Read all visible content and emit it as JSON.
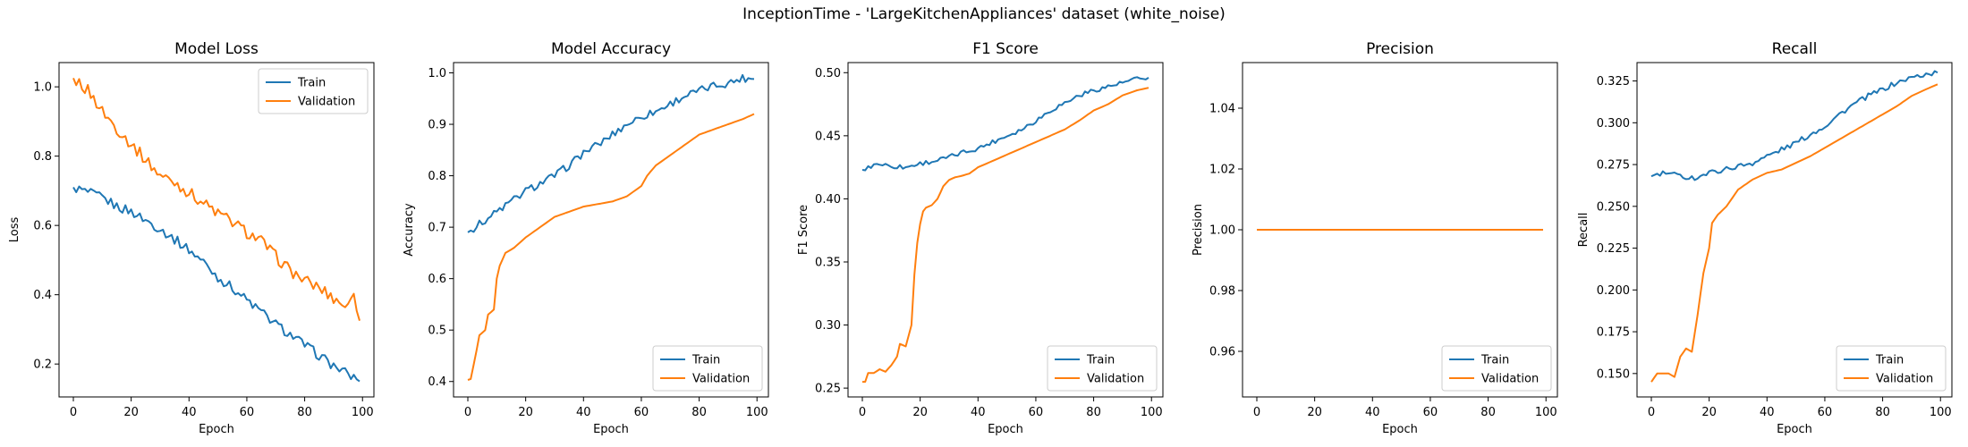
{
  "figure_title": "InceptionTime - 'LargeKitchenAppliances' dataset (white_noise)",
  "colors": {
    "train": "#1f77b4",
    "validation": "#ff7f0e"
  },
  "chart_data": [
    {
      "type": "line",
      "title": "Model Loss",
      "xlabel": "Epoch",
      "ylabel": "Loss",
      "xlim": [
        -4.95,
        103.95
      ],
      "ylim": [
        0.105,
        1.07
      ],
      "xticks": [
        0,
        20,
        40,
        60,
        80,
        100
      ],
      "yticks": [
        0.2,
        0.4,
        0.6,
        0.8,
        1.0
      ],
      "ytick_labels": [
        "0.2",
        "0.4",
        "0.6",
        "0.8",
        "1.0"
      ],
      "legend_loc": "top-right",
      "series": [
        {
          "name": "Train",
          "color": "#1f77b4",
          "smooth": true,
          "points": [
            [
              0,
              0.71
            ],
            [
              5,
              0.695
            ],
            [
              10,
              0.68
            ],
            [
              15,
              0.655
            ],
            [
              20,
              0.64
            ],
            [
              25,
              0.615
            ],
            [
              30,
              0.59
            ],
            [
              35,
              0.56
            ],
            [
              40,
              0.53
            ],
            [
              45,
              0.495
            ],
            [
              50,
              0.45
            ],
            [
              55,
              0.42
            ],
            [
              60,
              0.385
            ],
            [
              65,
              0.35
            ],
            [
              70,
              0.315
            ],
            [
              75,
              0.285
            ],
            [
              80,
              0.255
            ],
            [
              85,
              0.225
            ],
            [
              90,
              0.195
            ],
            [
              95,
              0.17
            ],
            [
              99,
              0.15
            ]
          ]
        },
        {
          "name": "Validation",
          "color": "#ff7f0e",
          "smooth": true,
          "points": [
            [
              0,
              1.025
            ],
            [
              5,
              0.99
            ],
            [
              10,
              0.93
            ],
            [
              15,
              0.88
            ],
            [
              20,
              0.835
            ],
            [
              25,
              0.79
            ],
            [
              30,
              0.745
            ],
            [
              35,
              0.725
            ],
            [
              40,
              0.695
            ],
            [
              45,
              0.665
            ],
            [
              50,
              0.635
            ],
            [
              55,
              0.61
            ],
            [
              60,
              0.58
            ],
            [
              65,
              0.555
            ],
            [
              70,
              0.51
            ],
            [
              75,
              0.47
            ],
            [
              80,
              0.44
            ],
            [
              85,
              0.42
            ],
            [
              90,
              0.39
            ],
            [
              95,
              0.365
            ],
            [
              97,
              0.41
            ],
            [
              99,
              0.325
            ]
          ]
        }
      ]
    },
    {
      "type": "line",
      "title": "Model Accuracy",
      "xlabel": "Epoch",
      "ylabel": "Accuracy",
      "xlim": [
        -4.95,
        103.95
      ],
      "ylim": [
        0.37,
        1.02
      ],
      "xticks": [
        0,
        20,
        40,
        60,
        80,
        100
      ],
      "yticks": [
        0.4,
        0.5,
        0.6,
        0.7,
        0.8,
        0.9,
        1.0
      ],
      "ytick_labels": [
        "0.4",
        "0.5",
        "0.6",
        "0.7",
        "0.8",
        "0.9",
        "1.0"
      ],
      "legend_loc": "lower-right",
      "series": [
        {
          "name": "Train",
          "color": "#1f77b4",
          "smooth": true,
          "points": [
            [
              0,
              0.69
            ],
            [
              5,
              0.71
            ],
            [
              10,
              0.73
            ],
            [
              15,
              0.75
            ],
            [
              20,
              0.77
            ],
            [
              25,
              0.785
            ],
            [
              30,
              0.8
            ],
            [
              35,
              0.82
            ],
            [
              40,
              0.845
            ],
            [
              45,
              0.86
            ],
            [
              50,
              0.88
            ],
            [
              55,
              0.9
            ],
            [
              60,
              0.915
            ],
            [
              65,
              0.925
            ],
            [
              70,
              0.94
            ],
            [
              75,
              0.955
            ],
            [
              80,
              0.965
            ],
            [
              85,
              0.975
            ],
            [
              90,
              0.98
            ],
            [
              95,
              0.99
            ],
            [
              99,
              0.988
            ]
          ]
        },
        {
          "name": "Validation",
          "color": "#ff7f0e",
          "smooth": false,
          "points": [
            [
              0,
              0.403
            ],
            [
              1,
              0.405
            ],
            [
              3,
              0.46
            ],
            [
              4,
              0.49
            ],
            [
              6,
              0.5
            ],
            [
              7,
              0.53
            ],
            [
              9,
              0.54
            ],
            [
              10,
              0.6
            ],
            [
              11,
              0.625
            ],
            [
              13,
              0.65
            ],
            [
              16,
              0.66
            ],
            [
              20,
              0.68
            ],
            [
              25,
              0.7
            ],
            [
              30,
              0.72
            ],
            [
              35,
              0.73
            ],
            [
              40,
              0.74
            ],
            [
              45,
              0.745
            ],
            [
              50,
              0.75
            ],
            [
              55,
              0.76
            ],
            [
              60,
              0.78
            ],
            [
              62,
              0.8
            ],
            [
              65,
              0.82
            ],
            [
              70,
              0.84
            ],
            [
              75,
              0.86
            ],
            [
              80,
              0.88
            ],
            [
              85,
              0.89
            ],
            [
              90,
              0.9
            ],
            [
              95,
              0.91
            ],
            [
              99,
              0.92
            ]
          ]
        }
      ]
    },
    {
      "type": "line",
      "title": "F1 Score",
      "xlabel": "Epoch",
      "ylabel": "F1 Score",
      "xlim": [
        -4.95,
        103.95
      ],
      "ylim": [
        0.243,
        0.508
      ],
      "xticks": [
        0,
        20,
        40,
        60,
        80,
        100
      ],
      "yticks": [
        0.25,
        0.3,
        0.35,
        0.4,
        0.45,
        0.5
      ],
      "ytick_labels": [
        "0.25",
        "0.30",
        "0.35",
        "0.40",
        "0.45",
        "0.50"
      ],
      "legend_loc": "lower-right",
      "series": [
        {
          "name": "Train",
          "color": "#1f77b4",
          "smooth": true,
          "points": [
            [
              0,
              0.423
            ],
            [
              5,
              0.428
            ],
            [
              10,
              0.426
            ],
            [
              15,
              0.425
            ],
            [
              20,
              0.428
            ],
            [
              25,
              0.43
            ],
            [
              30,
              0.433
            ],
            [
              35,
              0.437
            ],
            [
              40,
              0.44
            ],
            [
              45,
              0.445
            ],
            [
              50,
              0.45
            ],
            [
              55,
              0.455
            ],
            [
              60,
              0.462
            ],
            [
              65,
              0.47
            ],
            [
              70,
              0.476
            ],
            [
              75,
              0.482
            ],
            [
              80,
              0.486
            ],
            [
              85,
              0.489
            ],
            [
              90,
              0.492
            ],
            [
              95,
              0.495
            ],
            [
              99,
              0.496
            ]
          ]
        },
        {
          "name": "Validation",
          "color": "#ff7f0e",
          "smooth": false,
          "points": [
            [
              0,
              0.255
            ],
            [
              1,
              0.255
            ],
            [
              2,
              0.262
            ],
            [
              4,
              0.262
            ],
            [
              6,
              0.265
            ],
            [
              8,
              0.263
            ],
            [
              10,
              0.268
            ],
            [
              12,
              0.275
            ],
            [
              13,
              0.285
            ],
            [
              15,
              0.283
            ],
            [
              17,
              0.3
            ],
            [
              18,
              0.34
            ],
            [
              19,
              0.365
            ],
            [
              20,
              0.38
            ],
            [
              21,
              0.39
            ],
            [
              22,
              0.393
            ],
            [
              24,
              0.395
            ],
            [
              26,
              0.4
            ],
            [
              28,
              0.41
            ],
            [
              30,
              0.415
            ],
            [
              32,
              0.417
            ],
            [
              34,
              0.418
            ],
            [
              37,
              0.42
            ],
            [
              40,
              0.425
            ],
            [
              45,
              0.43
            ],
            [
              50,
              0.435
            ],
            [
              55,
              0.44
            ],
            [
              60,
              0.445
            ],
            [
              65,
              0.45
            ],
            [
              70,
              0.455
            ],
            [
              75,
              0.462
            ],
            [
              80,
              0.47
            ],
            [
              85,
              0.475
            ],
            [
              90,
              0.482
            ],
            [
              95,
              0.486
            ],
            [
              99,
              0.488
            ]
          ]
        }
      ]
    },
    {
      "type": "line",
      "title": "Precision",
      "xlabel": "Epoch",
      "ylabel": "Precision",
      "xlim": [
        -4.95,
        103.95
      ],
      "ylim": [
        0.945,
        1.055
      ],
      "xticks": [
        0,
        20,
        40,
        60,
        80,
        100
      ],
      "yticks": [
        0.96,
        0.98,
        1.0,
        1.02,
        1.04
      ],
      "ytick_labels": [
        "0.96",
        "0.98",
        "1.00",
        "1.02",
        "1.04"
      ],
      "legend_loc": "lower-right",
      "series": [
        {
          "name": "Train",
          "color": "#1f77b4",
          "smooth": false,
          "points": [
            [
              0,
              1.0
            ],
            [
              99,
              1.0
            ]
          ]
        },
        {
          "name": "Validation",
          "color": "#ff7f0e",
          "smooth": false,
          "points": [
            [
              0,
              1.0
            ],
            [
              99,
              1.0
            ]
          ]
        }
      ]
    },
    {
      "type": "line",
      "title": "Recall",
      "xlabel": "Epoch",
      "ylabel": "Recall",
      "xlim": [
        -4.95,
        103.95
      ],
      "ylim": [
        0.136,
        0.336
      ],
      "xticks": [
        0,
        20,
        40,
        60,
        80,
        100
      ],
      "yticks": [
        0.15,
        0.175,
        0.2,
        0.225,
        0.25,
        0.275,
        0.3,
        0.325
      ],
      "ytick_labels": [
        "0.150",
        "0.175",
        "0.200",
        "0.225",
        "0.250",
        "0.275",
        "0.300",
        "0.325"
      ],
      "legend_loc": "lower-right",
      "series": [
        {
          "name": "Train",
          "color": "#1f77b4",
          "smooth": true,
          "points": [
            [
              0,
              0.268
            ],
            [
              5,
              0.27
            ],
            [
              10,
              0.268
            ],
            [
              15,
              0.267
            ],
            [
              20,
              0.27
            ],
            [
              25,
              0.272
            ],
            [
              30,
              0.274
            ],
            [
              35,
              0.276
            ],
            [
              40,
              0.28
            ],
            [
              45,
              0.284
            ],
            [
              50,
              0.288
            ],
            [
              55,
              0.293
            ],
            [
              60,
              0.298
            ],
            [
              65,
              0.305
            ],
            [
              70,
              0.311
            ],
            [
              75,
              0.316
            ],
            [
              80,
              0.32
            ],
            [
              85,
              0.324
            ],
            [
              90,
              0.327
            ],
            [
              95,
              0.329
            ],
            [
              99,
              0.33
            ]
          ]
        },
        {
          "name": "Validation",
          "color": "#ff7f0e",
          "smooth": false,
          "points": [
            [
              0,
              0.145
            ],
            [
              2,
              0.15
            ],
            [
              6,
              0.15
            ],
            [
              8,
              0.148
            ],
            [
              10,
              0.16
            ],
            [
              12,
              0.165
            ],
            [
              14,
              0.163
            ],
            [
              16,
              0.185
            ],
            [
              18,
              0.21
            ],
            [
              20,
              0.225
            ],
            [
              21,
              0.24
            ],
            [
              23,
              0.245
            ],
            [
              26,
              0.25
            ],
            [
              30,
              0.26
            ],
            [
              35,
              0.266
            ],
            [
              40,
              0.27
            ],
            [
              45,
              0.272
            ],
            [
              50,
              0.276
            ],
            [
              55,
              0.28
            ],
            [
              60,
              0.285
            ],
            [
              65,
              0.29
            ],
            [
              70,
              0.295
            ],
            [
              75,
              0.3
            ],
            [
              80,
              0.305
            ],
            [
              85,
              0.31
            ],
            [
              90,
              0.316
            ],
            [
              95,
              0.32
            ],
            [
              99,
              0.323
            ]
          ]
        }
      ]
    }
  ]
}
